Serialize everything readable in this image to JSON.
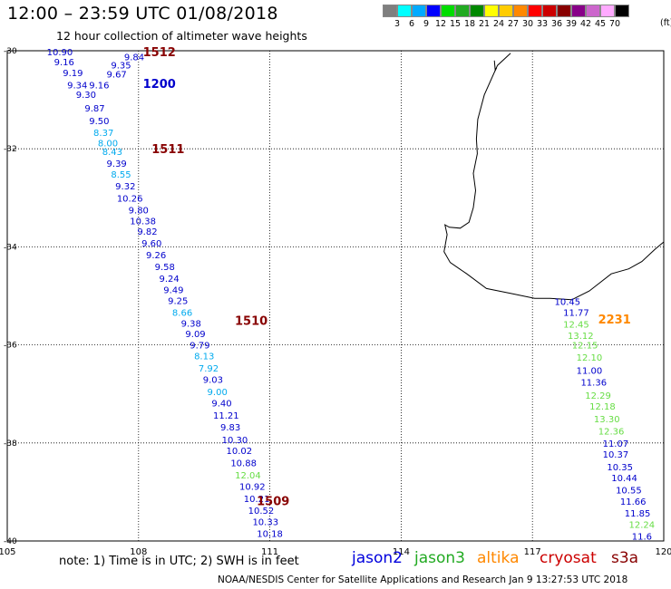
{
  "title": "12:00 – 23:59 UTC 01/08/2018",
  "subtitle": "12 hour collection of altimeter wave heights",
  "colorbar": {
    "colors": [
      "#7f7f7f",
      "#00ffff",
      "#00aaff",
      "#0000ff",
      "#00dd00",
      "#22aa22",
      "#008800",
      "#ffff00",
      "#ffcc00",
      "#ff8800",
      "#ff0000",
      "#cc0000",
      "#880000",
      "#880088",
      "#cc66cc",
      "#ffaaff",
      "#000000"
    ],
    "labels": [
      "3",
      "6",
      "9",
      "12",
      "15",
      "18",
      "21",
      "24",
      "27",
      "30",
      "33",
      "36",
      "39",
      "42",
      "45",
      "70"
    ],
    "unit": "(ft)"
  },
  "axes": {
    "lon_ticks": [
      "105",
      "108",
      "111",
      "114",
      "117",
      "120"
    ],
    "lat_ticks": [
      "-30",
      "-32",
      "-34",
      "-36",
      "-38",
      "-40"
    ]
  },
  "track_labels": [
    {
      "text": "1512",
      "lon": 108.1,
      "lat": -30.02,
      "color": "#880000"
    },
    {
      "text": "1200",
      "lon": 108.1,
      "lat": -30.67,
      "color": "#0000cc"
    },
    {
      "text": "1511",
      "lon": 108.3,
      "lat": -32.0,
      "color": "#880000"
    },
    {
      "text": "1510",
      "lon": 110.2,
      "lat": -35.5,
      "color": "#880000"
    },
    {
      "text": "1509",
      "lon": 110.7,
      "lat": -39.18,
      "color": "#880000"
    },
    {
      "text": "2231",
      "lon": 118.5,
      "lat": -35.47,
      "color": "#ff8800"
    }
  ],
  "observations": [
    {
      "lon": 106.2,
      "lat": -30.02,
      "swh": "10.90",
      "color": "#0000cc"
    },
    {
      "lon": 107.9,
      "lat": -30.12,
      "swh": "9.84",
      "color": "#0000cc"
    },
    {
      "lon": 106.3,
      "lat": -30.22,
      "swh": "9.16",
      "color": "#0000cc"
    },
    {
      "lon": 107.6,
      "lat": -30.29,
      "swh": "9.35",
      "color": "#0000cc"
    },
    {
      "lon": 106.5,
      "lat": -30.44,
      "swh": "9.19",
      "color": "#0000cc"
    },
    {
      "lon": 107.5,
      "lat": -30.47,
      "swh": "9.67",
      "color": "#0000cc"
    },
    {
      "lon": 106.6,
      "lat": -30.69,
      "swh": "9.34",
      "color": "#0000cc"
    },
    {
      "lon": 107.1,
      "lat": -30.69,
      "swh": "9.16",
      "color": "#0000cc"
    },
    {
      "lon": 106.8,
      "lat": -30.89,
      "swh": "9.30",
      "color": "#0000cc"
    },
    {
      "lon": 107.0,
      "lat": -31.16,
      "swh": "9.87",
      "color": "#0000cc"
    },
    {
      "lon": 107.1,
      "lat": -31.42,
      "swh": "9.50",
      "color": "#0000cc"
    },
    {
      "lon": 107.2,
      "lat": -31.66,
      "swh": "8.37",
      "color": "#00aaee"
    },
    {
      "lon": 107.3,
      "lat": -31.88,
      "swh": "8.00",
      "color": "#00aaee"
    },
    {
      "lon": 107.4,
      "lat": -32.05,
      "swh": "8.43",
      "color": "#00aaee"
    },
    {
      "lon": 107.5,
      "lat": -32.29,
      "swh": "9.39",
      "color": "#0000cc"
    },
    {
      "lon": 107.6,
      "lat": -32.51,
      "swh": "8.55",
      "color": "#00aaee"
    },
    {
      "lon": 107.7,
      "lat": -32.75,
      "swh": "9.32",
      "color": "#0000cc"
    },
    {
      "lon": 107.8,
      "lat": -33.0,
      "swh": "10.26",
      "color": "#0000cc"
    },
    {
      "lon": 108.0,
      "lat": -33.24,
      "swh": "9.80",
      "color": "#0000cc"
    },
    {
      "lon": 108.1,
      "lat": -33.47,
      "swh": "10.38",
      "color": "#0000cc"
    },
    {
      "lon": 108.2,
      "lat": -33.68,
      "swh": "9.82",
      "color": "#0000cc"
    },
    {
      "lon": 108.3,
      "lat": -33.92,
      "swh": "9.60",
      "color": "#0000cc"
    },
    {
      "lon": 108.4,
      "lat": -34.16,
      "swh": "9.26",
      "color": "#0000cc"
    },
    {
      "lon": 108.6,
      "lat": -34.4,
      "swh": "9.58",
      "color": "#0000cc"
    },
    {
      "lon": 108.7,
      "lat": -34.64,
      "swh": "9.24",
      "color": "#0000cc"
    },
    {
      "lon": 108.8,
      "lat": -34.87,
      "swh": "9.49",
      "color": "#0000cc"
    },
    {
      "lon": 108.9,
      "lat": -35.09,
      "swh": "9.25",
      "color": "#0000cc"
    },
    {
      "lon": 109.0,
      "lat": -35.33,
      "swh": "8.66",
      "color": "#00aaee"
    },
    {
      "lon": 109.2,
      "lat": -35.55,
      "swh": "9.38",
      "color": "#0000cc"
    },
    {
      "lon": 109.3,
      "lat": -35.77,
      "swh": "9.09",
      "color": "#0000cc"
    },
    {
      "lon": 109.4,
      "lat": -36.0,
      "swh": "9.79",
      "color": "#0000cc"
    },
    {
      "lon": 109.5,
      "lat": -36.22,
      "swh": "8.13",
      "color": "#00aaee"
    },
    {
      "lon": 109.6,
      "lat": -36.47,
      "swh": "7.92",
      "color": "#00aaee"
    },
    {
      "lon": 109.7,
      "lat": -36.7,
      "swh": "9.03",
      "color": "#0000cc"
    },
    {
      "lon": 109.8,
      "lat": -36.95,
      "swh": "9.00",
      "color": "#00aaee"
    },
    {
      "lon": 109.9,
      "lat": -37.18,
      "swh": "9.40",
      "color": "#0000cc"
    },
    {
      "lon": 110.0,
      "lat": -37.43,
      "swh": "11.21",
      "color": "#0000cc"
    },
    {
      "lon": 110.1,
      "lat": -37.67,
      "swh": "9.83",
      "color": "#0000cc"
    },
    {
      "lon": 110.2,
      "lat": -37.93,
      "swh": "10.30",
      "color": "#0000cc"
    },
    {
      "lon": 110.3,
      "lat": -38.15,
      "swh": "10.02",
      "color": "#0000cc"
    },
    {
      "lon": 110.4,
      "lat": -38.4,
      "swh": "10.88",
      "color": "#0000cc"
    },
    {
      "lon": 110.5,
      "lat": -38.65,
      "swh": "12.04",
      "color": "#66dd44"
    },
    {
      "lon": 110.6,
      "lat": -38.88,
      "swh": "10.92",
      "color": "#0000cc"
    },
    {
      "lon": 110.7,
      "lat": -39.13,
      "swh": "10.21",
      "color": "#0000cc"
    },
    {
      "lon": 110.8,
      "lat": -39.37,
      "swh": "10.52",
      "color": "#0000cc"
    },
    {
      "lon": 110.9,
      "lat": -39.6,
      "swh": "10.33",
      "color": "#0000cc"
    },
    {
      "lon": 111.0,
      "lat": -39.84,
      "swh": "10.18",
      "color": "#0000cc"
    },
    {
      "lon": 117.8,
      "lat": -35.11,
      "swh": "10.45",
      "color": "#0000cc"
    },
    {
      "lon": 118.0,
      "lat": -35.33,
      "swh": "11.77",
      "color": "#0000cc"
    },
    {
      "lon": 118.0,
      "lat": -35.57,
      "swh": "12.45",
      "color": "#66dd44"
    },
    {
      "lon": 118.1,
      "lat": -35.8,
      "swh": "13.12",
      "color": "#66dd44"
    },
    {
      "lon": 118.2,
      "lat": -36.0,
      "swh": "12.15",
      "color": "#66dd44"
    },
    {
      "lon": 118.3,
      "lat": -36.25,
      "swh": "12.10",
      "color": "#66dd44"
    },
    {
      "lon": 118.3,
      "lat": -36.52,
      "swh": "11.00",
      "color": "#0000cc"
    },
    {
      "lon": 118.4,
      "lat": -36.76,
      "swh": "11.36",
      "color": "#0000cc"
    },
    {
      "lon": 118.5,
      "lat": -37.02,
      "swh": "12.29",
      "color": "#66dd44"
    },
    {
      "lon": 118.6,
      "lat": -37.25,
      "swh": "12.18",
      "color": "#66dd44"
    },
    {
      "lon": 118.7,
      "lat": -37.5,
      "swh": "13.30",
      "color": "#66dd44"
    },
    {
      "lon": 118.8,
      "lat": -37.75,
      "swh": "12.36",
      "color": "#66dd44"
    },
    {
      "lon": 118.9,
      "lat": -38.0,
      "swh": "11.07",
      "color": "#0000cc"
    },
    {
      "lon": 118.9,
      "lat": -38.23,
      "swh": "10.37",
      "color": "#0000cc"
    },
    {
      "lon": 119.0,
      "lat": -38.48,
      "swh": "10.35",
      "color": "#0000cc"
    },
    {
      "lon": 119.1,
      "lat": -38.71,
      "swh": "10.44",
      "color": "#0000cc"
    },
    {
      "lon": 119.2,
      "lat": -38.96,
      "swh": "10.55",
      "color": "#0000cc"
    },
    {
      "lon": 119.3,
      "lat": -39.19,
      "swh": "11.66",
      "color": "#0000cc"
    },
    {
      "lon": 119.4,
      "lat": -39.43,
      "swh": "11.85",
      "color": "#0000cc"
    },
    {
      "lon": 119.5,
      "lat": -39.66,
      "swh": "12.24",
      "color": "#66dd44"
    },
    {
      "lon": 119.5,
      "lat": -39.9,
      "swh": "11.6",
      "color": "#0000cc"
    }
  ],
  "note": "note: 1) Time is in UTC; 2) SWH is in feet",
  "legend": [
    {
      "label": "jason2",
      "color": "#0000dd"
    },
    {
      "label": "jason3",
      "color": "#22aa22"
    },
    {
      "label": "altika",
      "color": "#ff8800"
    },
    {
      "label": "cryosat",
      "color": "#cc0000"
    },
    {
      "label": "s3a",
      "color": "#880000"
    }
  ],
  "credit": "NOAA/NESDIS Center for Satellite Applications and Research   Jan  9 13:27:53 UTC 2018"
}
